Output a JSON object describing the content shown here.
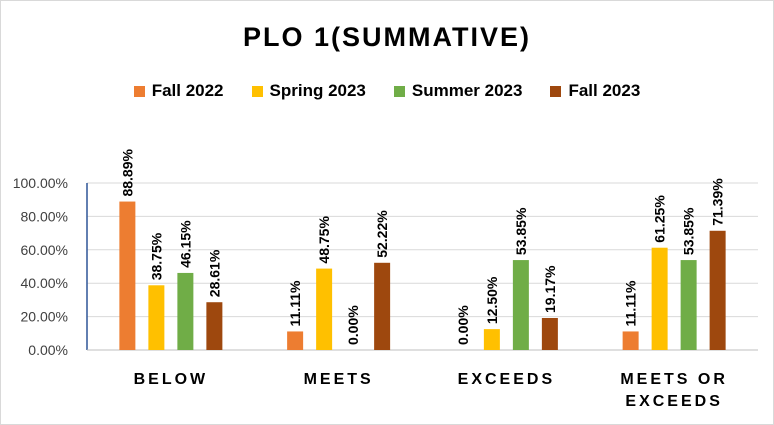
{
  "chart_data": {
    "type": "bar",
    "title": "PLO 1(SUMMATIVE)",
    "categories": [
      "BELOW",
      "MEETS",
      "EXCEEDS",
      "MEETS OR EXCEEDS"
    ],
    "series": [
      {
        "name": "Fall 2022",
        "color": "#ED7D31",
        "values": [
          88.89,
          11.11,
          0.0,
          11.11
        ],
        "labels": [
          "88.89%",
          "11.11%",
          "0.00%",
          "11.11%"
        ]
      },
      {
        "name": "Spring 2023",
        "color": "#FFC000",
        "values": [
          38.75,
          48.75,
          12.5,
          61.25
        ],
        "labels": [
          "38.75%",
          "48.75%",
          "12.50%",
          "61.25%"
        ]
      },
      {
        "name": "Summer 2023",
        "color": "#70AD47",
        "values": [
          46.15,
          0.0,
          53.85,
          53.85
        ],
        "labels": [
          "46.15%",
          "0.00%",
          "53.85%",
          "53.85%"
        ]
      },
      {
        "name": "Fall 2023",
        "color": "#9E480E",
        "values": [
          28.61,
          52.22,
          19.17,
          71.39
        ],
        "labels": [
          "28.61%",
          "52.22%",
          "19.17%",
          "71.39%"
        ]
      }
    ],
    "yticks": [
      "0.00%",
      "20.00%",
      "40.00%",
      "60.00%",
      "80.00%",
      "100.00%"
    ],
    "ylim": [
      0,
      100
    ],
    "grid": true,
    "legend": "top"
  }
}
